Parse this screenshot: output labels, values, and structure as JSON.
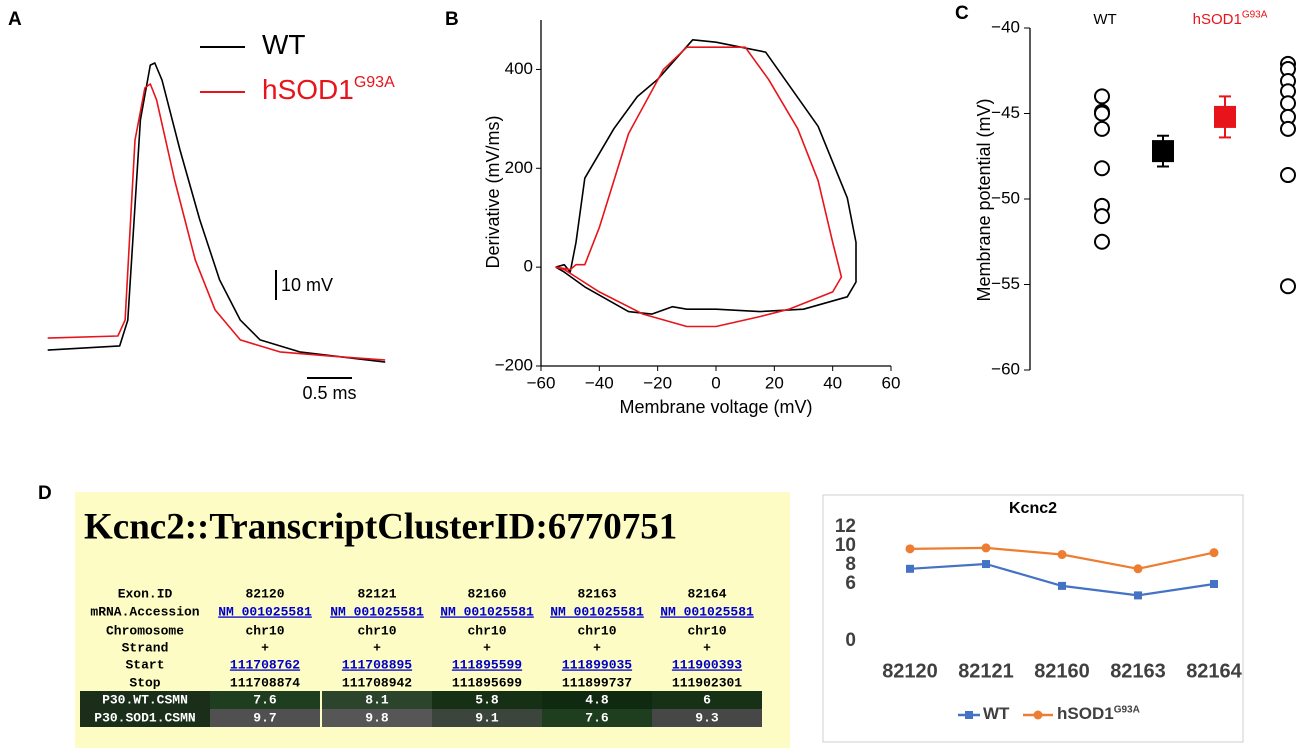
{
  "chart_data": [
    {
      "type": "line",
      "label": "A",
      "series": [
        {
          "name": "WT",
          "color": "#000000",
          "x": [
            0.03,
            0.83,
            0.92,
            1.06,
            1.17,
            1.22,
            1.3,
            1.5,
            1.72,
            1.94,
            2.17,
            2.39,
            2.83,
            3.39,
            3.78
          ],
          "values": [
            -70.7,
            -69.3,
            -60.7,
            6,
            24.3,
            25,
            19.3,
            -4,
            -27.3,
            -47.3,
            -60.7,
            -67.3,
            -71.3,
            -73.3,
            -74.7
          ]
        },
        {
          "name": "hSOD1",
          "name_superscript": "G93A",
          "color": "#e8141b",
          "x": [
            0.03,
            0.81,
            0.89,
            1.0,
            1.11,
            1.17,
            1.24,
            1.44,
            1.67,
            1.89,
            2.17,
            2.61,
            3.17,
            3.78
          ],
          "values": [
            -66.7,
            -66,
            -60.7,
            -0.7,
            16.7,
            18,
            12.7,
            -14,
            -40.7,
            -57.3,
            -67.3,
            -71.3,
            -72.7,
            -74
          ]
        }
      ],
      "scale_bars": [
        {
          "value": 10,
          "label": "10 mV"
        },
        {
          "value": 0.5,
          "label": "0.5 ms"
        }
      ]
    },
    {
      "type": "line",
      "label": "B",
      "xlabel": "Membrane voltage (mV)",
      "ylabel": "Derivative (mV/ms)",
      "xlim": [
        -60,
        60
      ],
      "ylim": [
        -200,
        500
      ],
      "xticks": [
        {
          "value": -60,
          "label": "−60"
        },
        {
          "value": -40,
          "label": "−40"
        },
        {
          "value": -20,
          "label": "−20"
        },
        0,
        20,
        40,
        60
      ],
      "yticks": [
        {
          "value": -200,
          "label": "−200"
        },
        0,
        200,
        400
      ],
      "series": [
        {
          "color": "#000000",
          "x": [
            -55,
            -52,
            -50,
            -48,
            -45,
            -35,
            -27,
            -20,
            -8,
            0,
            17,
            35,
            45,
            48,
            48,
            45,
            30,
            15,
            0,
            -10,
            -15,
            -22,
            -30,
            -45,
            -52,
            -55
          ],
          "values": [
            0,
            5,
            -10,
            50,
            180,
            280,
            345,
            380,
            460,
            455,
            435,
            285,
            140,
            50,
            -30,
            -60,
            -85,
            -90,
            -85,
            -85,
            -80,
            -95,
            -90,
            -40,
            -10,
            0
          ]
        },
        {
          "color": "#e8141b",
          "x": [
            -55,
            -50,
            -48,
            -45,
            -40,
            -30,
            -18,
            -10,
            10,
            18,
            28,
            35,
            40,
            43,
            40,
            25,
            15,
            0,
            -10,
            -25,
            -40,
            -48,
            -52,
            -55
          ],
          "values": [
            0,
            -5,
            5,
            5,
            80,
            270,
            400,
            445,
            445,
            380,
            280,
            175,
            50,
            -20,
            -50,
            -85,
            -100,
            -120,
            -120,
            -95,
            -50,
            -20,
            -5,
            0
          ]
        }
      ]
    },
    {
      "type": "dotplot",
      "label": "C",
      "ylabel": "Membrane potential (mV)",
      "ylim": [
        -60,
        -40
      ],
      "yticks": [
        {
          "value": -40,
          "label": "−40"
        },
        {
          "value": -45,
          "label": "−45"
        },
        {
          "value": -50,
          "label": "−50"
        },
        {
          "value": -55,
          "label": "−55"
        },
        {
          "value": -60,
          "label": "−60"
        }
      ],
      "series": [
        {
          "name": "WT",
          "color": "#000000",
          "values": [
            -44,
            -44.9,
            -45,
            -45.9,
            -48.2,
            -50.4,
            -51,
            -52.5
          ],
          "mean": -47.2,
          "error": 0.9
        },
        {
          "name": "hSOD1",
          "name_superscript": "G93A",
          "color": "#e8141b",
          "values": [
            -42.1,
            -42.4,
            -43.1,
            -43.7,
            -44.4,
            -45.2,
            -45.9,
            -48.6,
            -55.1
          ],
          "mean": -45.2,
          "error": 1.2
        }
      ]
    },
    {
      "type": "line",
      "title": "Kcnc2",
      "categories": [
        "82120",
        "82121",
        "82160",
        "82163",
        "82164"
      ],
      "ylim": [
        0,
        12
      ],
      "yticks": [
        0,
        6,
        8,
        10,
        12
      ],
      "series": [
        {
          "name": "WT",
          "color": "#4472c4",
          "marker": "square",
          "values": [
            7.6,
            8.1,
            5.8,
            4.8,
            6
          ]
        },
        {
          "name": "hSOD1",
          "name_superscript": "G93A",
          "color": "#ed7d31",
          "marker": "circle",
          "values": [
            9.7,
            9.8,
            9.1,
            7.6,
            9.3
          ]
        }
      ]
    }
  ],
  "table": {
    "panel_label": "D",
    "title": "Kcnc2::TranscriptClusterID:6770751",
    "rows": [
      {
        "label": "Exon.ID",
        "cells": [
          "82120",
          "82121",
          "82160",
          "82163",
          "82164"
        ]
      },
      {
        "label": "mRNA.Accession",
        "link": true,
        "cells": [
          "NM_001025581",
          "NM_001025581",
          "NM_001025581",
          "NM_001025581",
          "NM_001025581"
        ]
      },
      {
        "label": "Chromosome",
        "cells": [
          "chr10",
          "chr10",
          "chr10",
          "chr10",
          "chr10"
        ]
      },
      {
        "label": "Strand",
        "cells": [
          "+",
          "+",
          "+",
          "+",
          "+"
        ]
      },
      {
        "label": "Start",
        "link": true,
        "cells": [
          "111708762",
          "111708895",
          "111895599",
          "111899035",
          "111900393"
        ]
      },
      {
        "label": "Stop",
        "cells": [
          "111708874",
          "111708942",
          "111895699",
          "111899737",
          "111902301"
        ]
      },
      {
        "label": "P30.WT.CSMN",
        "cells": [
          7.6,
          8.1,
          5.8,
          4.8,
          6
        ],
        "colors": [
          "#1f3d1f",
          "#2b442b",
          "#163016",
          "#0f2a10",
          "#173117"
        ]
      },
      {
        "label": "P30.SOD1.CSMN",
        "cells": [
          9.7,
          9.8,
          9.1,
          7.6,
          9.3
        ],
        "colors": [
          "#505050",
          "#565656",
          "#3c453c",
          "#1f3d1f",
          "#474747"
        ]
      }
    ]
  }
}
